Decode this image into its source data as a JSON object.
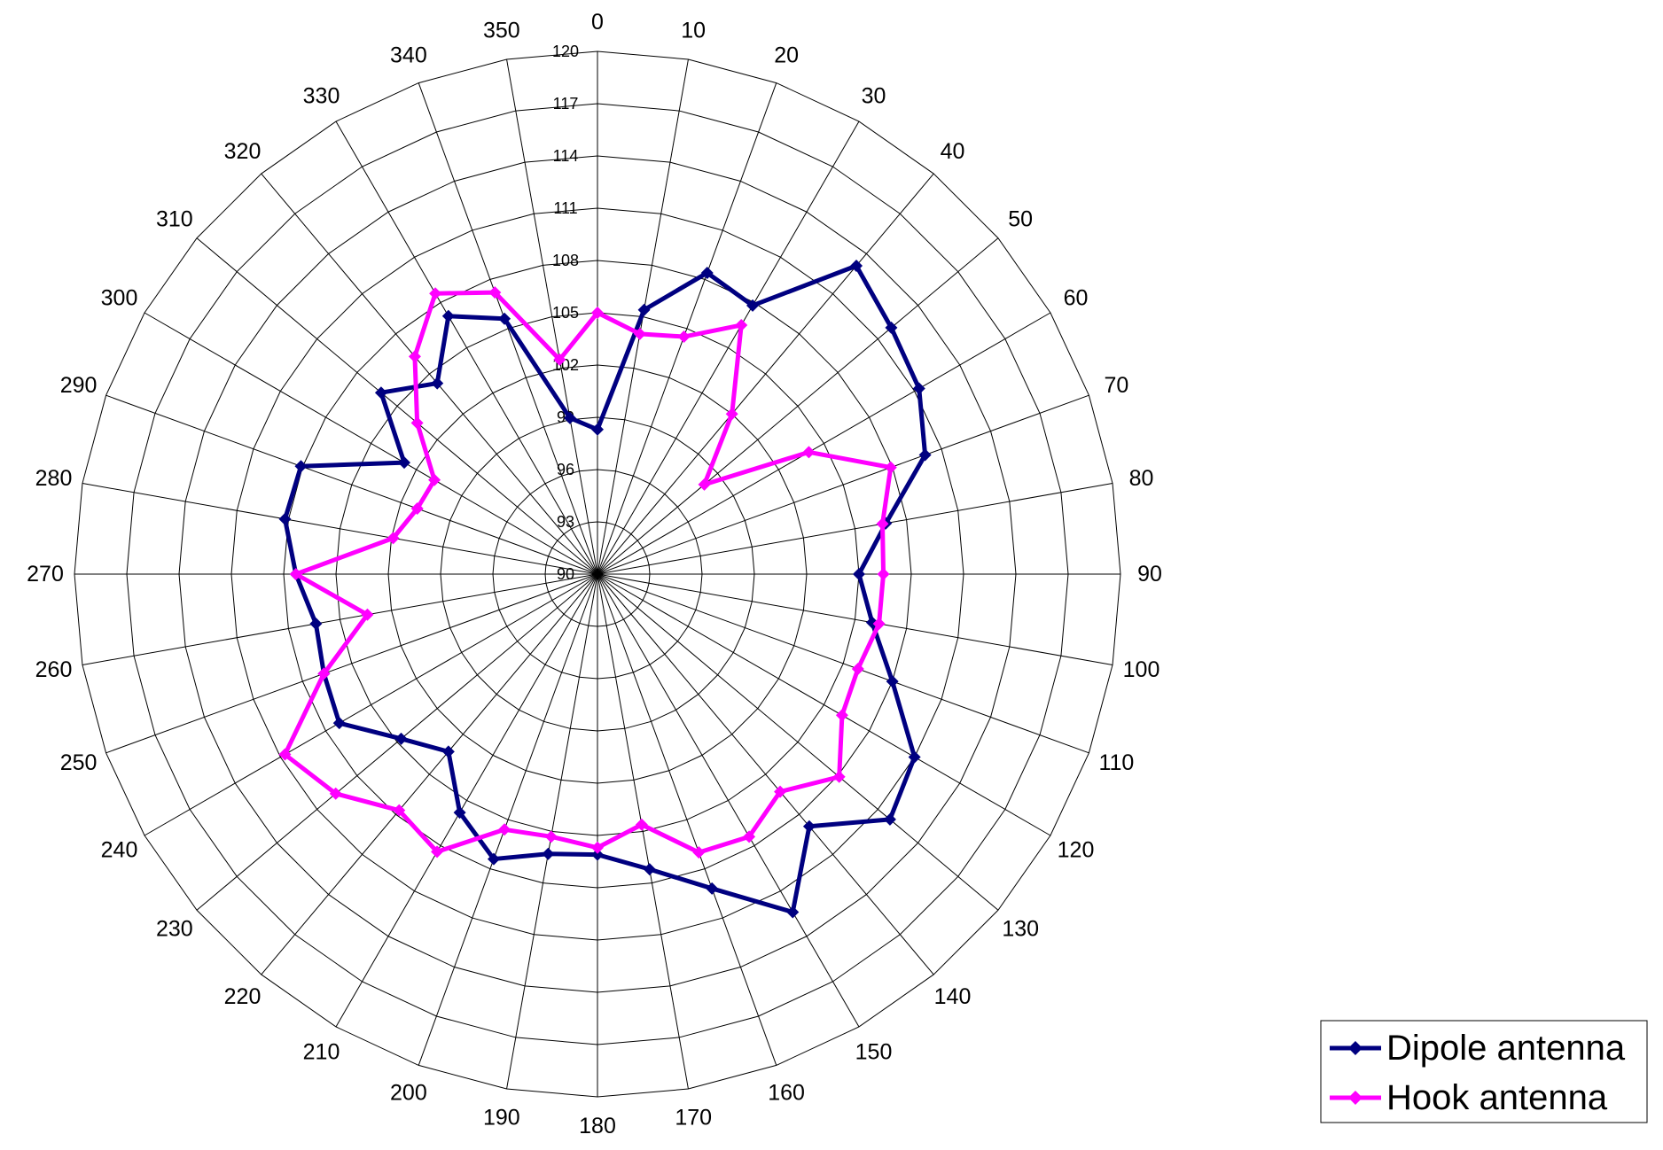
{
  "chart_data": {
    "type": "radar",
    "angles_deg": [
      0,
      10,
      20,
      30,
      40,
      50,
      60,
      70,
      80,
      90,
      100,
      110,
      120,
      130,
      140,
      150,
      160,
      170,
      180,
      190,
      200,
      210,
      220,
      230,
      240,
      250,
      260,
      270,
      280,
      290,
      300,
      310,
      320,
      330,
      340,
      350
    ],
    "radial_ticks": [
      90,
      93,
      96,
      99,
      102,
      105,
      108,
      111,
      114,
      117,
      120
    ],
    "rlim": [
      90,
      120
    ],
    "grid": true,
    "legend_position": "bottom-right",
    "series": [
      {
        "name": "Dipole antenna",
        "color": "#000080",
        "marker": "diamond",
        "values": [
          98.3,
          105.4,
          108.4,
          107.8,
          113.1,
          112.0,
          111.3,
          110.0,
          106.8,
          105.0,
          106.0,
          108.0,
          111.0,
          111.9,
          108.9,
          112.4,
          109.2,
          107.2,
          106.1,
          106.3,
          107.4,
          105.8,
          103.3,
          104.7,
          107.1,
          106.7,
          106.4,
          107.3,
          108.2,
          108.1,
          102.8,
          106.2,
          104.3,
          107.1,
          105.6,
          99.1
        ]
      },
      {
        "name": "Hook antenna",
        "color": "#ff00ff",
        "marker": "diamond",
        "values": [
          105.0,
          104.0,
          104.5,
          106.5,
          102.0,
          98.0,
          104.0,
          107.9,
          106.6,
          106.4,
          106.4,
          105.9,
          106.2,
          108.1,
          106.3,
          107.4,
          107.0,
          104.6,
          105.7,
          105.3,
          105.6,
          108.4,
          107.7,
          109.6,
          110.7,
          106.7,
          103.4,
          107.3,
          101.9,
          101.0,
          100.8,
          103.5,
          106.3,
          108.6,
          107.2,
          102.5
        ]
      }
    ]
  }
}
